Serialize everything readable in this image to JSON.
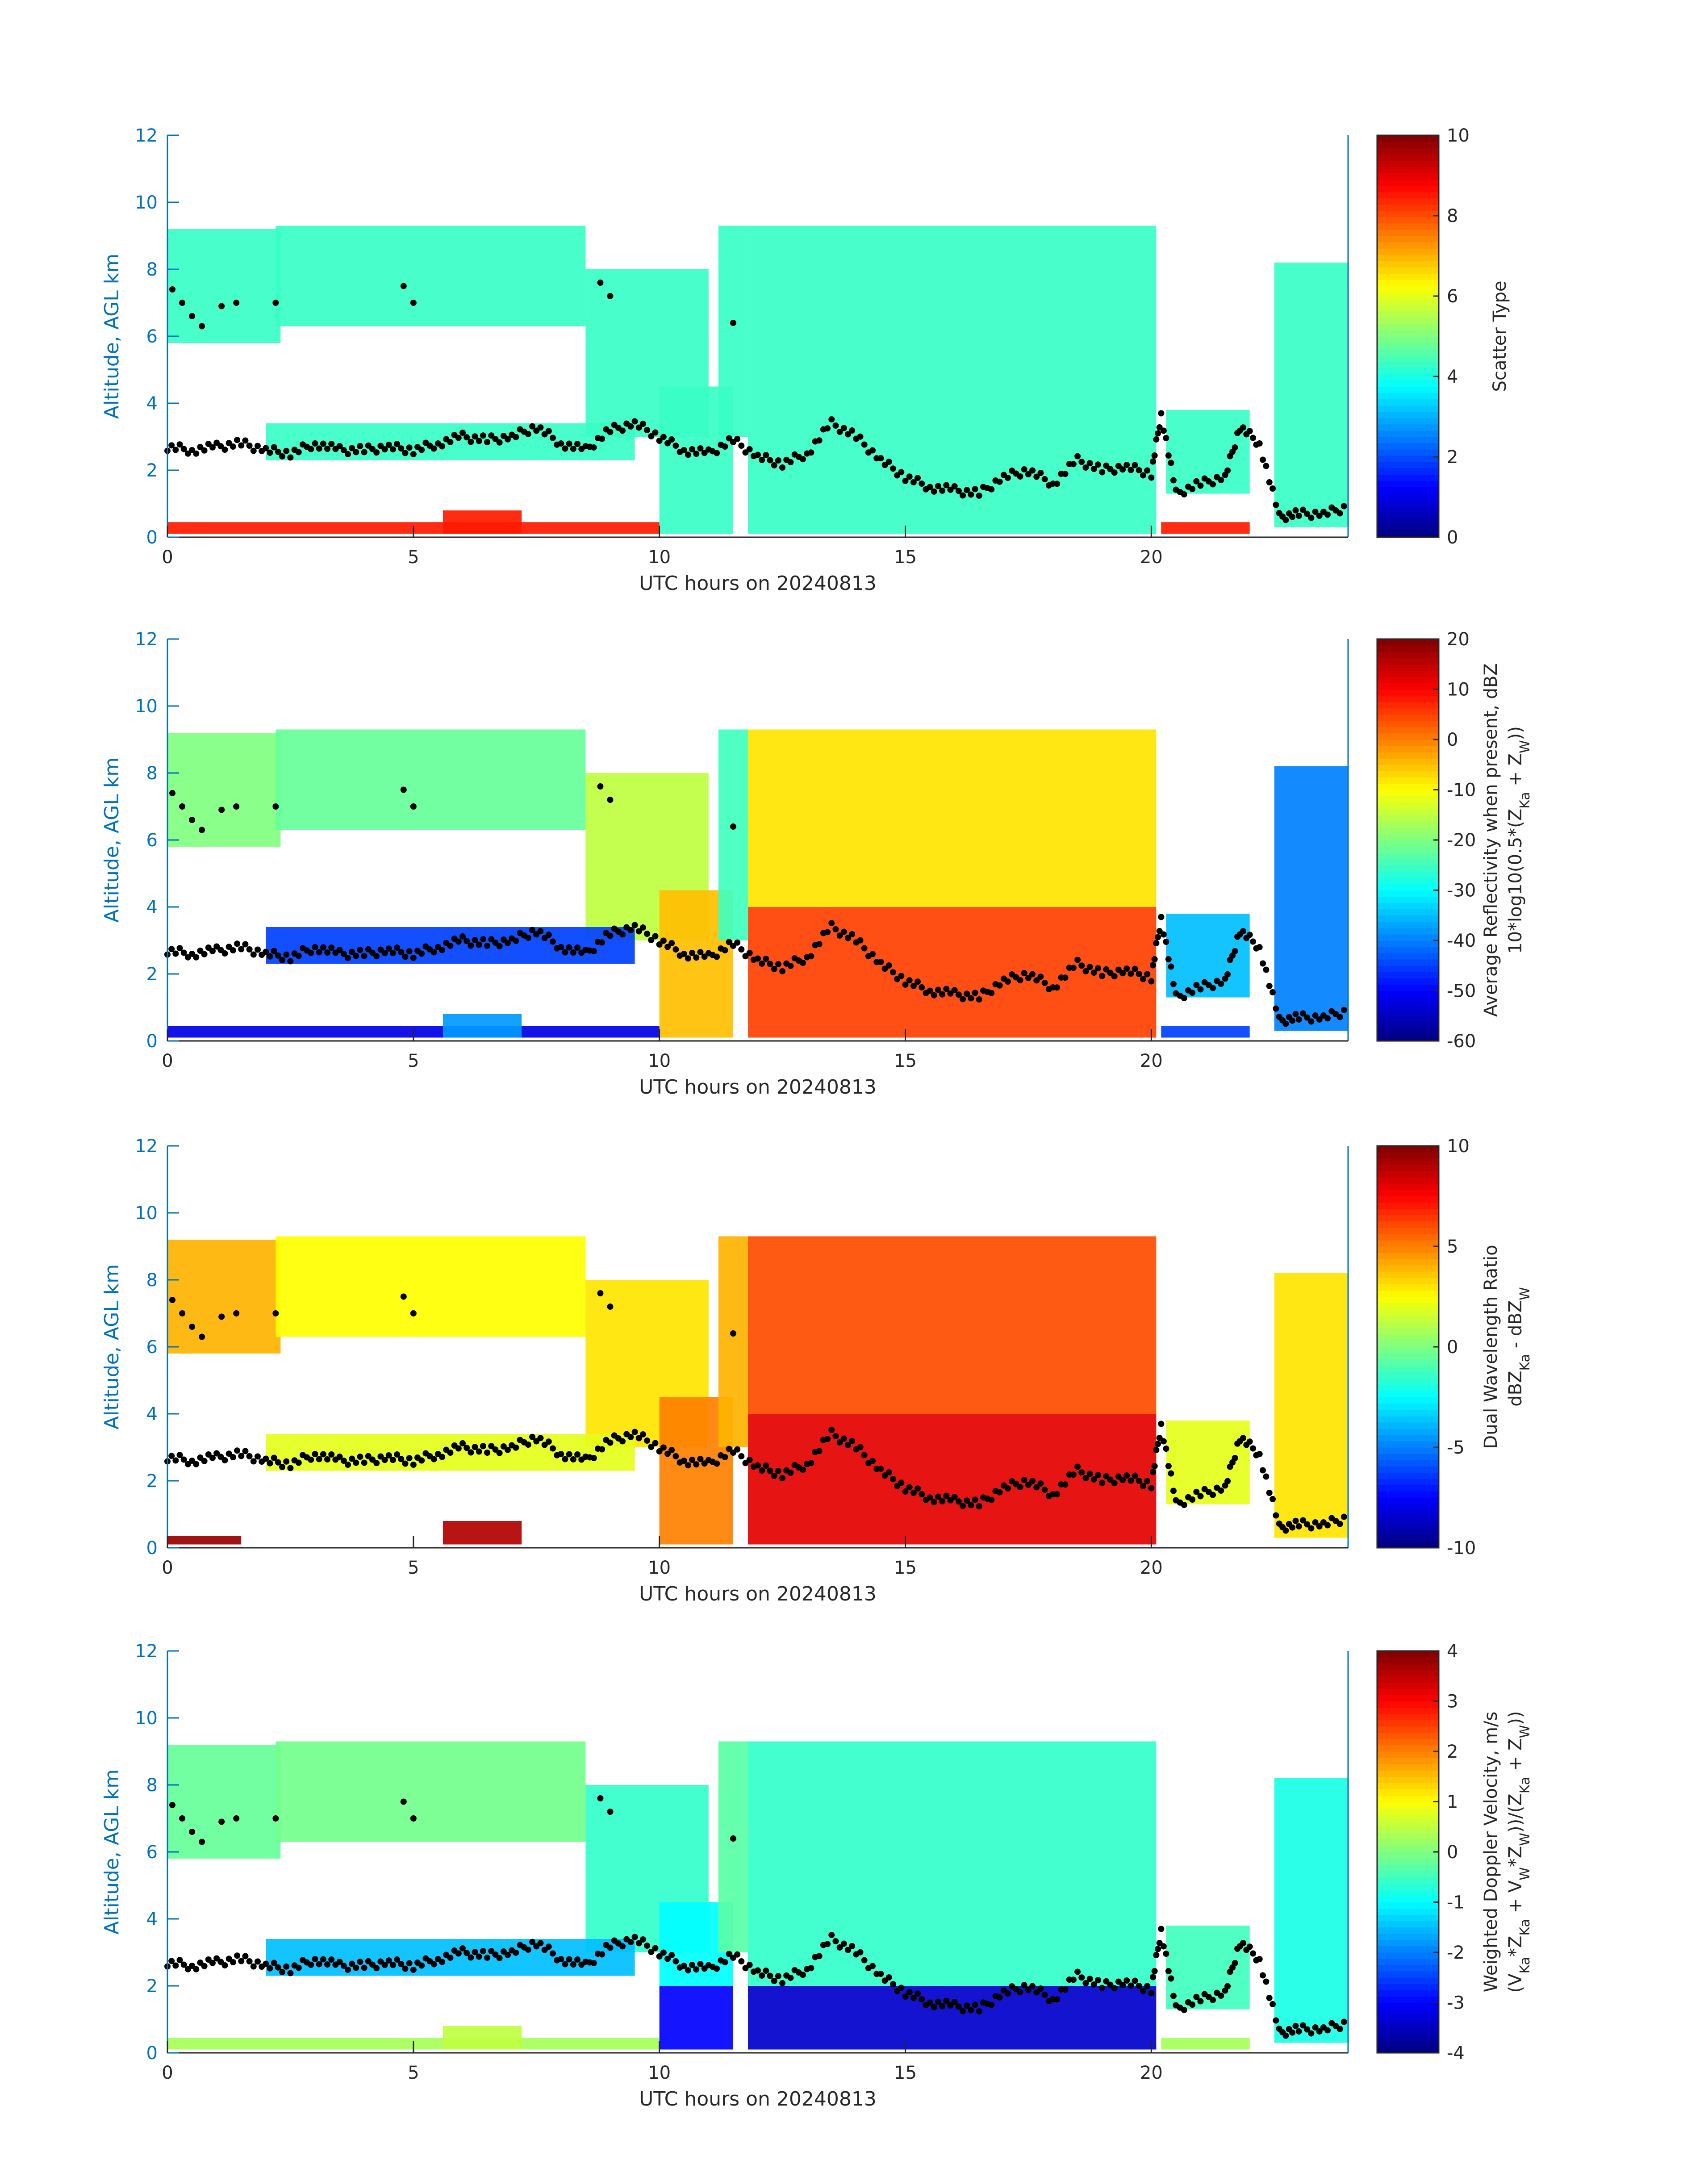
{
  "chart_data": [
    {
      "type": "heatmap",
      "xlabel": "UTC hours on 20240813",
      "ylabel": "Altitude, AGL km",
      "xlim": [
        0,
        24
      ],
      "ylim": [
        0,
        12
      ],
      "xticks": [
        "0",
        "5",
        "10",
        "15",
        "20"
      ],
      "yticks": [
        "0",
        "2",
        "4",
        "6",
        "8",
        "10",
        "12"
      ],
      "colorbar": {
        "label": [
          "Scatter Type"
        ],
        "clim": [
          0,
          10
        ],
        "ticks": [
          "0",
          "2",
          "4",
          "6",
          "8",
          "10"
        ],
        "colormap": "jet"
      },
      "regions": [
        {
          "t": [
            0,
            2.3
          ],
          "z": [
            5.8,
            9.2
          ],
          "value": 4.3
        },
        {
          "t": [
            2.2,
            8.5
          ],
          "z": [
            6.3,
            9.3
          ],
          "value": 4.3
        },
        {
          "t": [
            8.5,
            11
          ],
          "z": [
            3.0,
            8.0
          ],
          "value": 4.3
        },
        {
          "t": [
            10,
            11.5
          ],
          "z": [
            0.1,
            4.5
          ],
          "value": 4.3
        },
        {
          "t": [
            11.2,
            11.8
          ],
          "z": [
            3.0,
            9.3
          ],
          "value": 4.3
        },
        {
          "t": [
            11.8,
            20.1
          ],
          "z": [
            0.1,
            9.3
          ],
          "value": 4.3
        },
        {
          "t": [
            2,
            9.5
          ],
          "z": [
            2.3,
            3.4
          ],
          "value": 4.3
        },
        {
          "t": [
            20.3,
            22
          ],
          "z": [
            1.3,
            3.8
          ],
          "value": 4.3
        },
        {
          "t": [
            22.5,
            24
          ],
          "z": [
            0.3,
            8.2
          ],
          "value": 4.3
        },
        {
          "t": [
            0,
            10
          ],
          "z": [
            0.1,
            0.45
          ],
          "value": 8.5
        },
        {
          "t": [
            5.6,
            7.2
          ],
          "z": [
            0.1,
            0.8
          ],
          "value": 8.5
        },
        {
          "t": [
            20.2,
            22
          ],
          "z": [
            0.1,
            0.45
          ],
          "value": 8.5
        }
      ]
    },
    {
      "type": "heatmap",
      "xlabel": "UTC hours on 20240813",
      "ylabel": "Altitude, AGL km",
      "xlim": [
        0,
        24
      ],
      "ylim": [
        0,
        12
      ],
      "xticks": [
        "0",
        "5",
        "10",
        "15",
        "20"
      ],
      "yticks": [
        "0",
        "2",
        "4",
        "6",
        "8",
        "10",
        "12"
      ],
      "colorbar": {
        "label": [
          "Average Reflectivity when present, dBZ",
          "10*log10(0.5*(Z_Ka + Z_W))"
        ],
        "clim": [
          -60,
          20
        ],
        "ticks": [
          "-60",
          "-50",
          "-40",
          "-30",
          "-20",
          "-10",
          "0",
          "10",
          "20"
        ],
        "colormap": "jet"
      },
      "regions": [
        {
          "t": [
            0,
            2.3
          ],
          "z": [
            5.8,
            9.2
          ],
          "value": -20
        },
        {
          "t": [
            2.2,
            8.5
          ],
          "z": [
            6.3,
            9.3
          ],
          "value": -22
        },
        {
          "t": [
            8.5,
            11
          ],
          "z": [
            3.0,
            8.0
          ],
          "value": -15
        },
        {
          "t": [
            10,
            11.5
          ],
          "z": [
            0.1,
            4.5
          ],
          "value": -5
        },
        {
          "t": [
            11.2,
            11.8
          ],
          "z": [
            3.0,
            9.3
          ],
          "value": -25
        },
        {
          "t": [
            11.8,
            20.1
          ],
          "z": [
            4.0,
            9.3
          ],
          "value": -8
        },
        {
          "t": [
            11.8,
            20.1
          ],
          "z": [
            0.1,
            4.0
          ],
          "value": 5
        },
        {
          "t": [
            2,
            9.5
          ],
          "z": [
            2.3,
            3.4
          ],
          "value": -45
        },
        {
          "t": [
            20.3,
            22
          ],
          "z": [
            1.3,
            3.8
          ],
          "value": -35
        },
        {
          "t": [
            22.5,
            24
          ],
          "z": [
            0.3,
            8.2
          ],
          "value": -40
        },
        {
          "t": [
            0,
            10
          ],
          "z": [
            0.1,
            0.45
          ],
          "value": -52
        },
        {
          "t": [
            5.6,
            7.2
          ],
          "z": [
            0.1,
            0.8
          ],
          "value": -38
        },
        {
          "t": [
            20.2,
            22
          ],
          "z": [
            0.1,
            0.45
          ],
          "value": -45
        }
      ]
    },
    {
      "type": "heatmap",
      "xlabel": "UTC hours on 20240813",
      "ylabel": "Altitude, AGL km",
      "xlim": [
        0,
        24
      ],
      "ylim": [
        0,
        12
      ],
      "xticks": [
        "0",
        "5",
        "10",
        "15",
        "20"
      ],
      "yticks": [
        "0",
        "2",
        "4",
        "6",
        "8",
        "10",
        "12"
      ],
      "colorbar": {
        "label": [
          "Dual Wavelength Ratio",
          "dBZ_Ka - dBZ_W"
        ],
        "clim": [
          -10,
          10
        ],
        "ticks": [
          "-10",
          "-5",
          "0",
          "5",
          "10"
        ],
        "colormap": "jet"
      },
      "regions": [
        {
          "t": [
            0,
            2.3
          ],
          "z": [
            5.8,
            9.2
          ],
          "value": 4
        },
        {
          "t": [
            2.2,
            8.5
          ],
          "z": [
            6.3,
            9.3
          ],
          "value": 2.5
        },
        {
          "t": [
            8.5,
            11
          ],
          "z": [
            3.0,
            8.0
          ],
          "value": 3
        },
        {
          "t": [
            10,
            11.5
          ],
          "z": [
            0.1,
            4.5
          ],
          "value": 5
        },
        {
          "t": [
            11.2,
            11.8
          ],
          "z": [
            3.0,
            9.3
          ],
          "value": 4
        },
        {
          "t": [
            11.8,
            20.1
          ],
          "z": [
            4.0,
            9.3
          ],
          "value": 6
        },
        {
          "t": [
            11.8,
            20.1
          ],
          "z": [
            0.1,
            4.0
          ],
          "value": 8
        },
        {
          "t": [
            2,
            9.5
          ],
          "z": [
            2.3,
            3.4
          ],
          "value": 2
        },
        {
          "t": [
            20.3,
            22
          ],
          "z": [
            1.3,
            3.8
          ],
          "value": 2
        },
        {
          "t": [
            22.5,
            24
          ],
          "z": [
            0.3,
            8.2
          ],
          "value": 3
        },
        {
          "t": [
            0,
            1.5
          ],
          "z": [
            0.1,
            0.35
          ],
          "value": 9.5
        },
        {
          "t": [
            5.6,
            7.2
          ],
          "z": [
            0.1,
            0.8
          ],
          "value": 9
        }
      ]
    },
    {
      "type": "heatmap",
      "xlabel": "UTC hours on 20240813",
      "ylabel": "Altitude, AGL km",
      "xlim": [
        0,
        24
      ],
      "ylim": [
        0,
        12
      ],
      "xticks": [
        "0",
        "5",
        "10",
        "15",
        "20"
      ],
      "yticks": [
        "0",
        "2",
        "4",
        "6",
        "8",
        "10",
        "12"
      ],
      "colorbar": {
        "label": [
          "Weighted Doppler Velocity, m/s",
          "(V_Ka*Z_Ka + V_W*Z_W))/(Z_Ka + Z_W))"
        ],
        "clim": [
          -4,
          4
        ],
        "ticks": [
          "-4",
          "-3",
          "-2",
          "-1",
          "0",
          "1",
          "2",
          "3",
          "4"
        ],
        "colormap": "jet"
      },
      "regions": [
        {
          "t": [
            0,
            2.3
          ],
          "z": [
            5.8,
            9.2
          ],
          "value": -0.2
        },
        {
          "t": [
            2.2,
            8.5
          ],
          "z": [
            6.3,
            9.3
          ],
          "value": -0.1
        },
        {
          "t": [
            8.5,
            11
          ],
          "z": [
            3.0,
            8.0
          ],
          "value": -0.6
        },
        {
          "t": [
            10,
            11.5
          ],
          "z": [
            2.0,
            4.5
          ],
          "value": -1.0
        },
        {
          "t": [
            10,
            11.5
          ],
          "z": [
            0.1,
            2.0
          ],
          "value": -3.0
        },
        {
          "t": [
            11.2,
            11.8
          ],
          "z": [
            3.0,
            9.3
          ],
          "value": -0.3
        },
        {
          "t": [
            11.8,
            20.1
          ],
          "z": [
            2.0,
            9.3
          ],
          "value": -0.6
        },
        {
          "t": [
            11.8,
            20.1
          ],
          "z": [
            0.1,
            2.0
          ],
          "value": -3.4
        },
        {
          "t": [
            2,
            9.5
          ],
          "z": [
            2.3,
            3.4
          ],
          "value": -1.5
        },
        {
          "t": [
            20.3,
            22
          ],
          "z": [
            1.3,
            3.8
          ],
          "value": -0.5
        },
        {
          "t": [
            22.5,
            24
          ],
          "z": [
            0.3,
            8.2
          ],
          "value": -0.8
        },
        {
          "t": [
            0,
            10
          ],
          "z": [
            0.1,
            0.45
          ],
          "value": 0.3
        },
        {
          "t": [
            5.6,
            7.2
          ],
          "z": [
            0.1,
            0.8
          ],
          "value": 0.5
        },
        {
          "t": [
            20.2,
            22
          ],
          "z": [
            0.1,
            0.45
          ],
          "value": 0.3
        }
      ]
    }
  ],
  "markers": {
    "color": "#000000",
    "t": [
      0,
      0.5,
      1,
      1.5,
      2,
      2.5,
      3,
      3.5,
      4,
      4.5,
      5,
      5.5,
      6,
      6.5,
      7,
      7.5,
      8,
      8.5,
      9,
      9.5,
      10,
      10.5,
      11,
      11.5,
      12,
      12.5,
      13,
      13.5,
      14,
      14.5,
      15,
      15.5,
      16,
      16.5,
      17,
      17.5,
      18,
      18.5,
      19,
      19.5,
      20,
      20.2,
      20.5,
      21,
      21.5,
      21.8,
      22.2,
      22.6,
      23,
      23.5,
      24
    ],
    "z": [
      2.7,
      2.6,
      2.7,
      2.8,
      2.6,
      2.5,
      2.8,
      2.6,
      2.6,
      2.7,
      2.6,
      2.8,
      3.0,
      2.9,
      3.0,
      3.3,
      2.8,
      2.6,
      3.2,
      3.4,
      3.0,
      2.6,
      2.5,
      2.9,
      2.4,
      2.2,
      2.5,
      3.4,
      3.0,
      2.3,
      1.8,
      1.5,
      1.4,
      1.3,
      1.8,
      2.0,
      1.6,
      2.3,
      2.0,
      2.1,
      1.9,
      3.7,
      1.3,
      1.6,
      1.8,
      3.3,
      2.8,
      0.6,
      0.7,
      0.7,
      0.9
    ]
  },
  "upper_markers": {
    "t": [
      0.1,
      0.3,
      0.5,
      0.7,
      1.1,
      1.4,
      2.2,
      4.8,
      5.0,
      8.8,
      9.0,
      11.5
    ],
    "z": [
      7.4,
      7.0,
      6.6,
      6.3,
      6.9,
      7.0,
      7.0,
      7.5,
      7.0,
      7.6,
      7.2,
      6.4
    ]
  }
}
